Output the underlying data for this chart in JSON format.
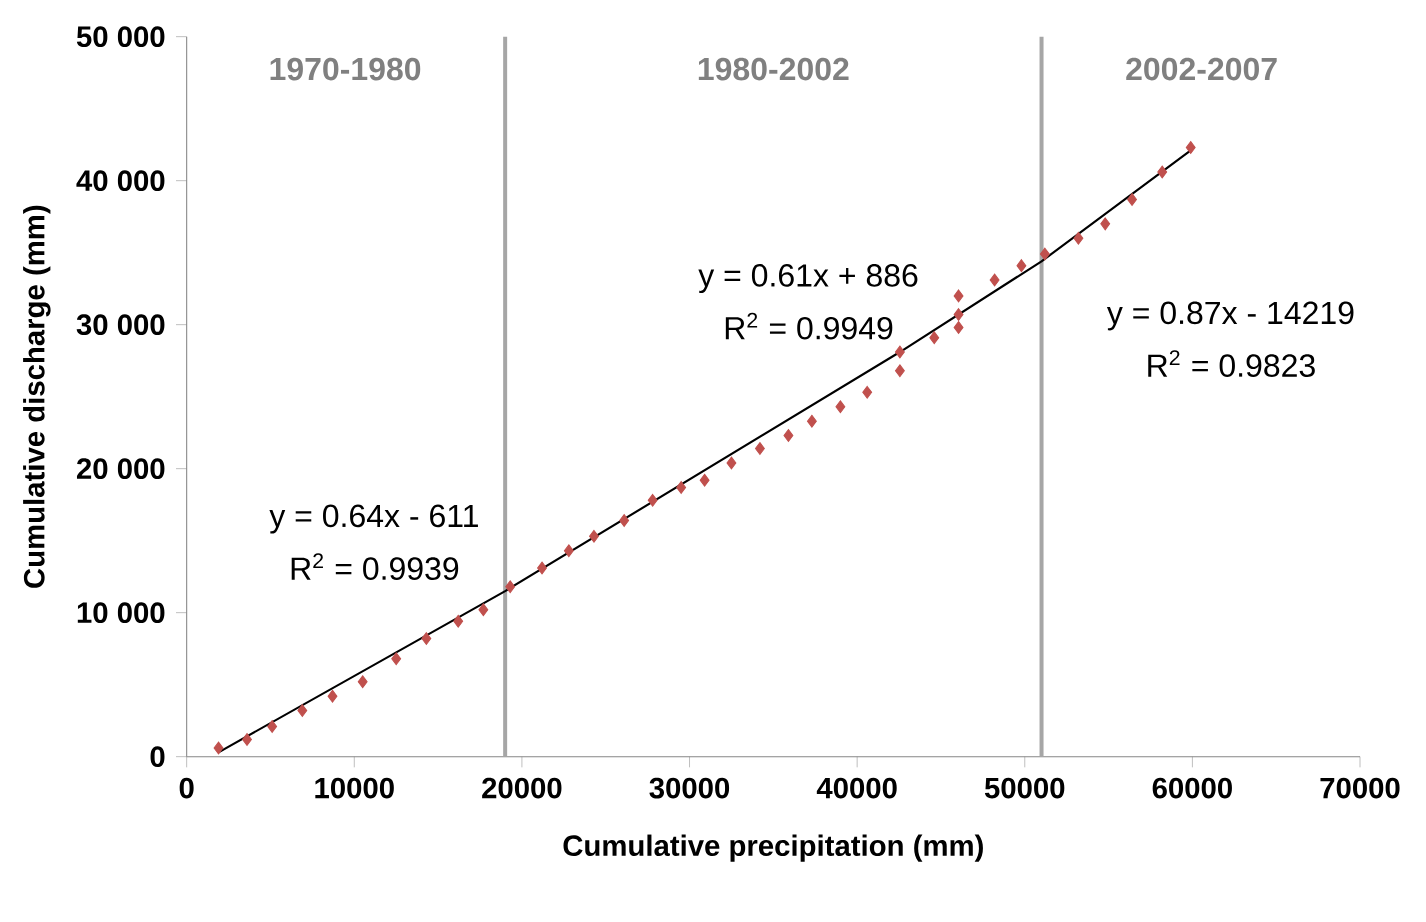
{
  "chart_data": {
    "type": "scatter",
    "xlabel": "Cumulative precipitation (mm)",
    "ylabel": "Cumulative discharge (mm)",
    "xlim": [
      0,
      70000
    ],
    "xticks": [
      0,
      10000,
      20000,
      30000,
      40000,
      50000,
      60000,
      70000
    ],
    "ylim": [
      0,
      50000
    ],
    "yticks": [
      0,
      {
        "value": 10000,
        "label": "10 000"
      },
      {
        "value": 20000,
        "label": "20 000"
      },
      {
        "value": 30000,
        "label": "30 000"
      },
      {
        "value": 40000,
        "label": "40 000"
      },
      {
        "value": 50000,
        "label": "50 000"
      }
    ],
    "marker": "diamond",
    "series": [
      {
        "color": "#c0504d",
        "x": [
          1900,
          3600,
          5100,
          6900,
          8700,
          10500,
          12500,
          14300,
          16200,
          17700,
          19300,
          21200,
          22800,
          24300,
          26100,
          27800,
          29500,
          30900,
          32500,
          34200,
          35900,
          37300,
          39000,
          40600,
          42550,
          42550,
          44600,
          46050,
          46050,
          46050,
          48200,
          49800,
          51200,
          53200,
          54800,
          56400,
          58200,
          59900
        ],
        "values": [
          600,
          1200,
          2100,
          3200,
          4200,
          5200,
          6800,
          8200,
          9400,
          10200,
          11800,
          13100,
          14300,
          15300,
          16400,
          17800,
          18700,
          19200,
          20400,
          21400,
          22300,
          23300,
          24300,
          25300,
          26800,
          28100,
          29100,
          29800,
          30700,
          32000,
          33100,
          34100,
          34900,
          36000,
          37000,
          38700,
          40600,
          42300
        ]
      },
      {
        "type": "line",
        "color": "#000000",
        "marker": "none",
        "x": [
          1900,
          19000,
          42550,
          51000,
          59900
        ],
        "values": [
          300,
          11500,
          28100,
          34400,
          42100
        ]
      }
    ],
    "ref_lines": [
      {
        "axis": "x",
        "value": 19000,
        "color": "#a6a6a6"
      },
      {
        "axis": "x",
        "value": 51000,
        "color": "#a6a6a6"
      }
    ],
    "annotations": [
      "1970-1980",
      "1980-2002",
      "2002-2007",
      "y = 0.64x - 611",
      "R$^{2}$ = 0.9939",
      "y = 0.61x + 886",
      "R$^{2}$ = 0.9949",
      "y = 0.87x - 14219",
      "R$^{2}$ = 0.9823"
    ]
  }
}
